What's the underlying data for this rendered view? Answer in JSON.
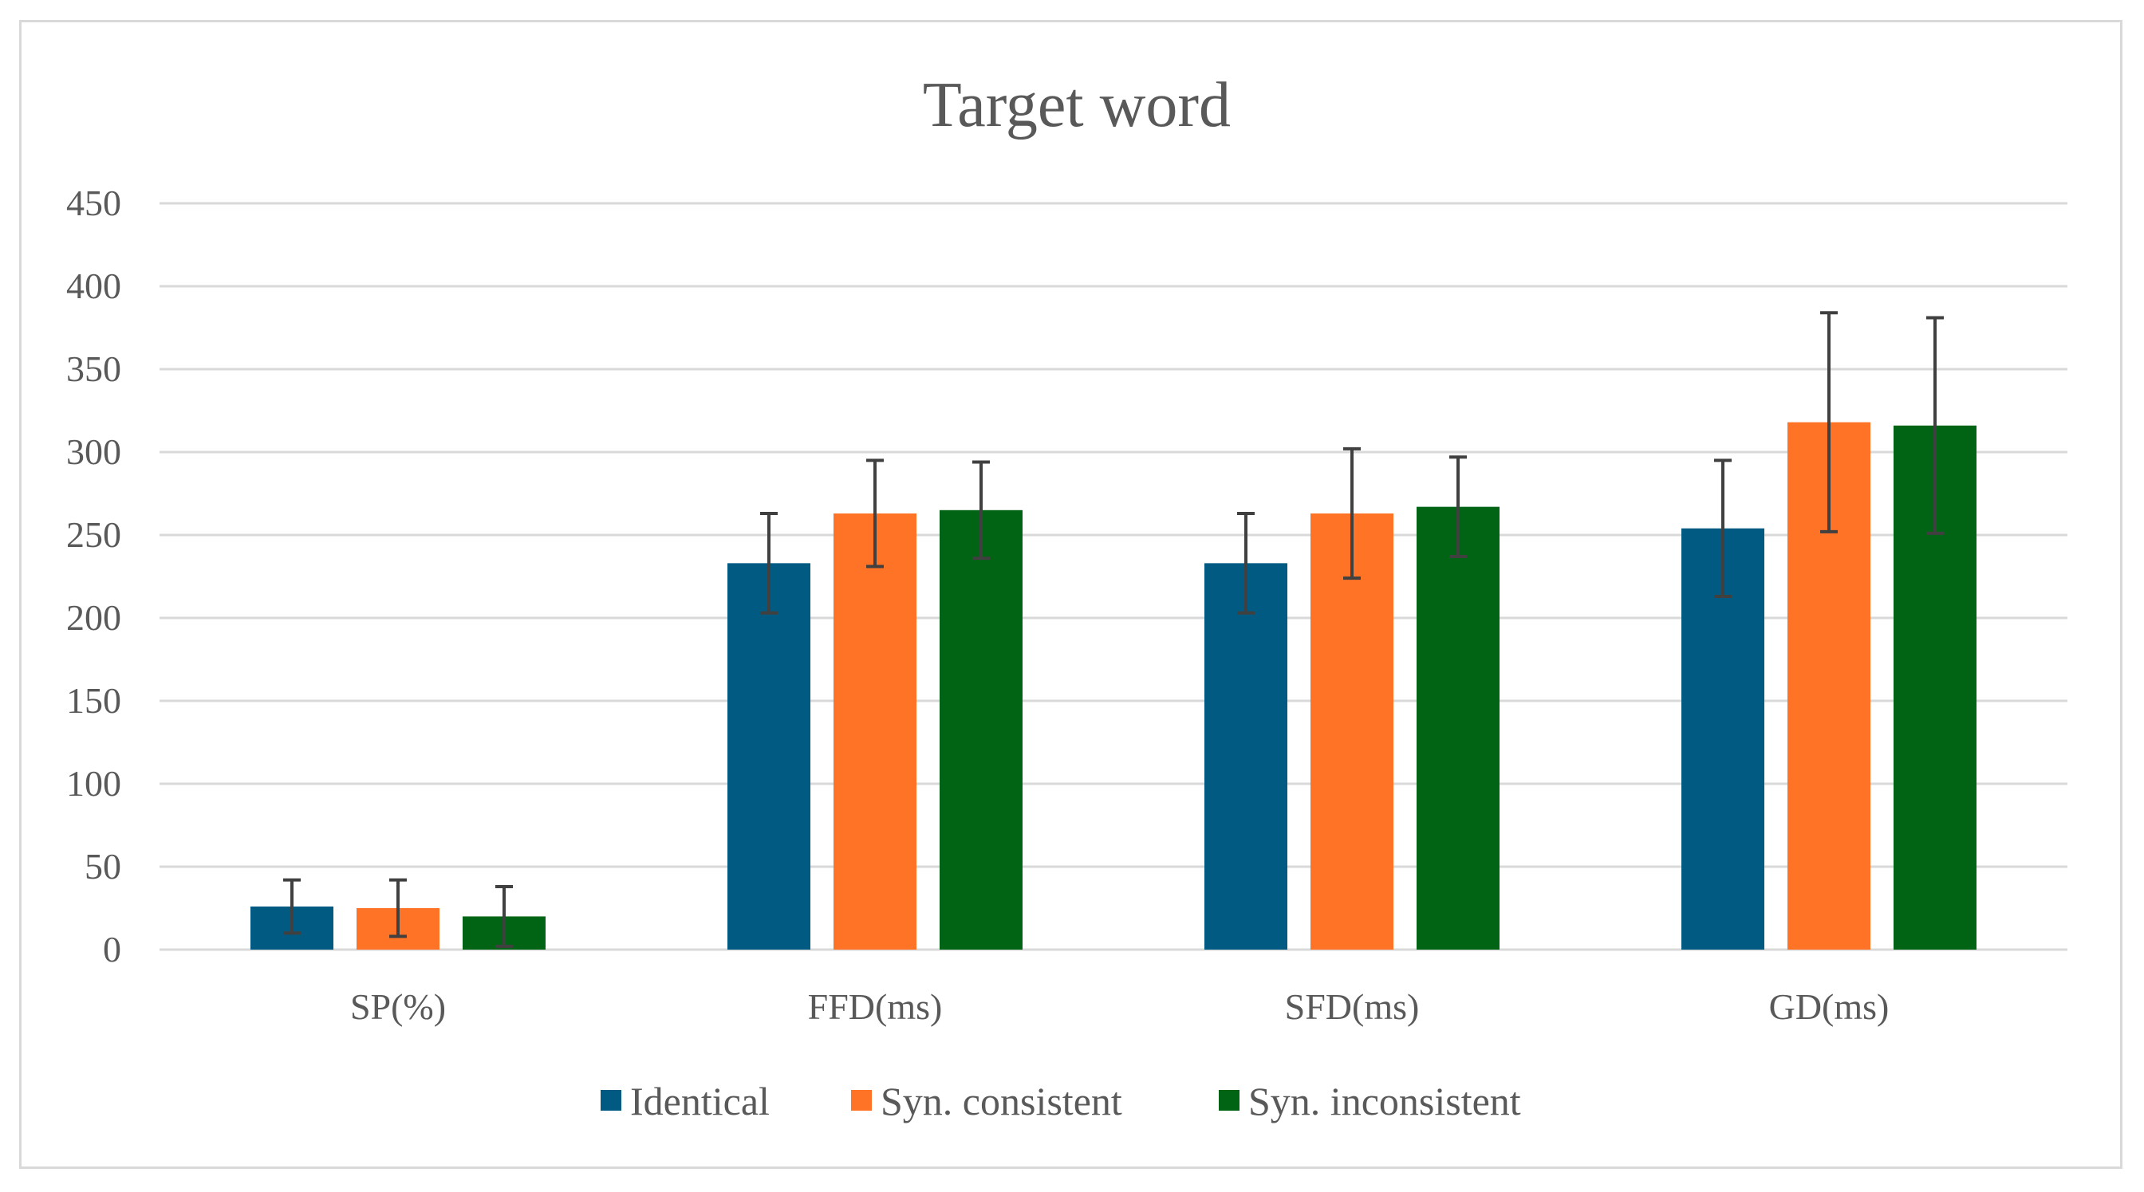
{
  "chart_data": {
    "type": "bar",
    "title": "Target word",
    "xlabel": "",
    "ylabel": "",
    "categories": [
      "SP(%)",
      "FFD(ms)",
      "SFD(ms)",
      "GD(ms)"
    ],
    "ylim": [
      0,
      450
    ],
    "yticks": [
      0,
      50,
      100,
      150,
      200,
      250,
      300,
      350,
      400,
      450
    ],
    "grid": true,
    "legend_position": "bottom",
    "error_bars": true,
    "series": [
      {
        "name": "Identical",
        "color": "#005a82",
        "values": [
          26,
          233,
          233,
          254
        ],
        "error": [
          16,
          30,
          30,
          41
        ]
      },
      {
        "name": "Syn. consistent",
        "color": "#ff7326",
        "values": [
          25,
          263,
          263,
          318
        ],
        "error": [
          17,
          32,
          39,
          66
        ]
      },
      {
        "name": "Syn. inconsistent",
        "color": "#006414",
        "values": [
          20,
          265,
          267,
          316
        ],
        "error": [
          18,
          29,
          30,
          65
        ]
      }
    ]
  }
}
